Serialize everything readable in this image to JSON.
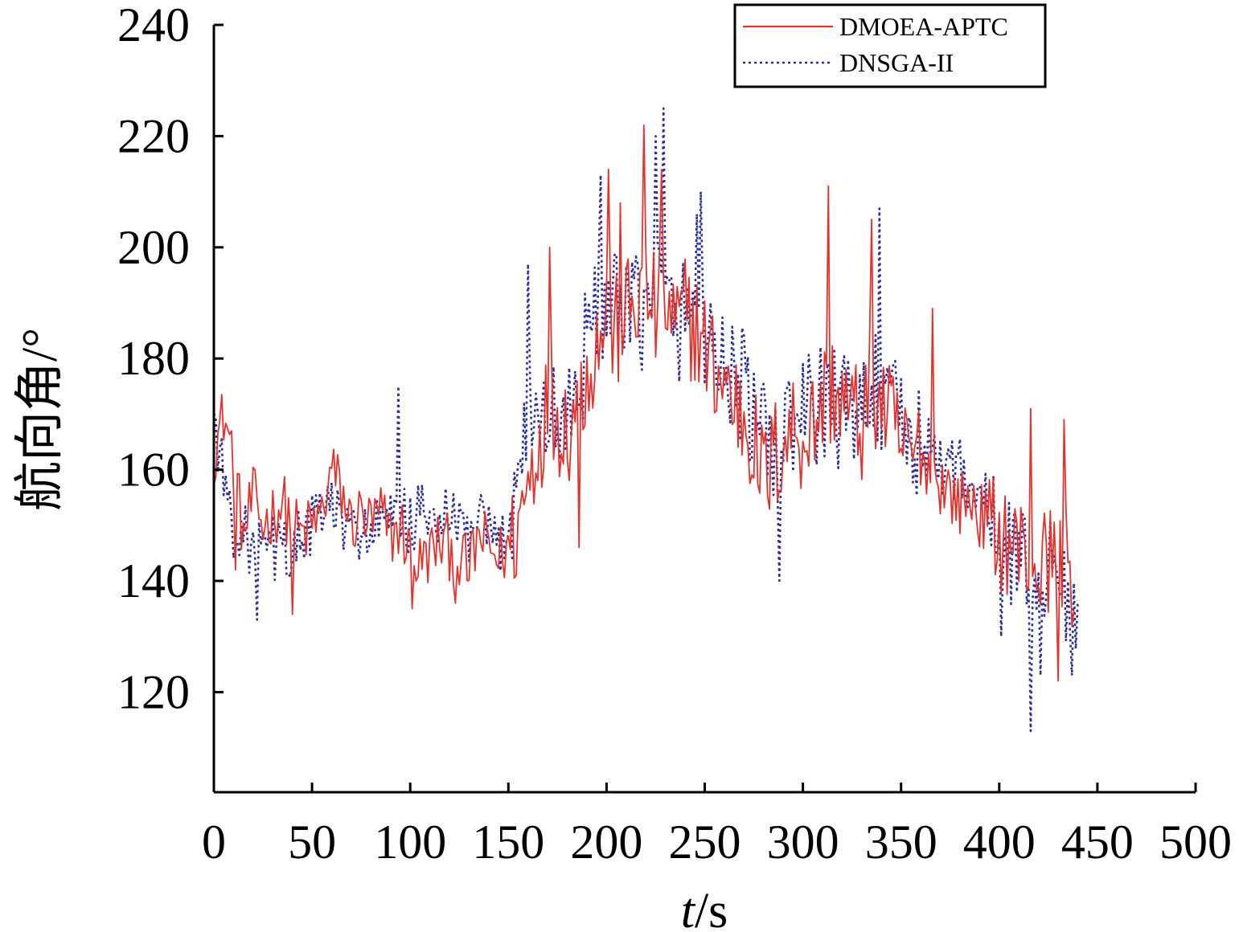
{
  "chart_data": {
    "type": "line",
    "title": "",
    "xlabel": "t/s",
    "xlabel_italic_part": "t",
    "xlabel_unit_part": "/s",
    "ylabel": "航向角/°",
    "xlim": [
      0,
      500
    ],
    "ylim": [
      102,
      240
    ],
    "xticks": [
      0,
      50,
      100,
      150,
      200,
      250,
      300,
      350,
      400,
      450,
      500
    ],
    "yticks": [
      120,
      140,
      160,
      180,
      200,
      220,
      240
    ],
    "grid": false,
    "legend_position": "top-right",
    "series": [
      {
        "name": "DMOEA-APTC",
        "color": "#e8312a",
        "style": "solid",
        "anchors": [
          [
            0,
            163
          ],
          [
            5,
            170
          ],
          [
            10,
            162
          ],
          [
            15,
            148
          ],
          [
            20,
            155
          ],
          [
            25,
            150
          ],
          [
            30,
            152
          ],
          [
            35,
            154
          ],
          [
            40,
            150
          ],
          [
            45,
            148
          ],
          [
            50,
            150
          ],
          [
            55,
            152
          ],
          [
            60,
            160
          ],
          [
            65,
            156
          ],
          [
            70,
            150
          ],
          [
            75,
            152
          ],
          [
            80,
            150
          ],
          [
            85,
            152
          ],
          [
            90,
            148
          ],
          [
            95,
            150
          ],
          [
            100,
            145
          ],
          [
            105,
            143
          ],
          [
            110,
            145
          ],
          [
            115,
            147
          ],
          [
            120,
            146
          ],
          [
            125,
            144
          ],
          [
            130,
            142
          ],
          [
            135,
            148
          ],
          [
            140,
            146
          ],
          [
            145,
            144
          ],
          [
            150,
            146
          ],
          [
            155,
            150
          ],
          [
            160,
            158
          ],
          [
            165,
            165
          ],
          [
            170,
            172
          ],
          [
            175,
            170
          ],
          [
            180,
            168
          ],
          [
            185,
            172
          ],
          [
            190,
            178
          ],
          [
            195,
            182
          ],
          [
            200,
            188
          ],
          [
            205,
            184
          ],
          [
            210,
            188
          ],
          [
            215,
            190
          ],
          [
            220,
            192
          ],
          [
            225,
            188
          ],
          [
            230,
            190
          ],
          [
            235,
            185
          ],
          [
            240,
            188
          ],
          [
            245,
            186
          ],
          [
            250,
            182
          ],
          [
            255,
            178
          ],
          [
            260,
            176
          ],
          [
            265,
            172
          ],
          [
            270,
            170
          ],
          [
            275,
            165
          ],
          [
            280,
            158
          ],
          [
            285,
            162
          ],
          [
            290,
            165
          ],
          [
            295,
            168
          ],
          [
            300,
            166
          ],
          [
            305,
            168
          ],
          [
            310,
            172
          ],
          [
            315,
            175
          ],
          [
            320,
            172
          ],
          [
            325,
            170
          ],
          [
            330,
            168
          ],
          [
            335,
            175
          ],
          [
            340,
            172
          ],
          [
            345,
            168
          ],
          [
            350,
            164
          ],
          [
            355,
            162
          ],
          [
            360,
            163
          ],
          [
            365,
            160
          ],
          [
            370,
            158
          ],
          [
            375,
            156
          ],
          [
            380,
            154
          ],
          [
            385,
            155
          ],
          [
            390,
            152
          ],
          [
            395,
            150
          ],
          [
            400,
            148
          ],
          [
            405,
            147
          ],
          [
            410,
            146
          ],
          [
            415,
            144
          ],
          [
            420,
            142
          ],
          [
            425,
            144
          ],
          [
            430,
            145
          ],
          [
            435,
            144
          ],
          [
            438,
            140
          ]
        ],
        "peaks": [
          [
            219,
            222
          ],
          [
            313,
            211
          ],
          [
            201,
            214
          ],
          [
            335,
            205
          ],
          [
            228,
            214
          ],
          [
            207,
            208
          ],
          [
            171,
            200
          ],
          [
            366,
            189
          ],
          [
            186,
            146
          ],
          [
            416,
            171
          ],
          [
            433,
            169
          ],
          [
            430,
            122
          ],
          [
            40,
            134
          ],
          [
            11,
            142
          ],
          [
            101,
            135
          ],
          [
            123,
            136
          ]
        ]
      },
      {
        "name": "DNSGA-II",
        "color": "#2a2f9c",
        "style": "dotted",
        "anchors": [
          [
            0,
            170
          ],
          [
            5,
            158
          ],
          [
            10,
            150
          ],
          [
            15,
            148
          ],
          [
            20,
            146
          ],
          [
            25,
            145
          ],
          [
            30,
            146
          ],
          [
            35,
            145
          ],
          [
            40,
            146
          ],
          [
            45,
            148
          ],
          [
            50,
            150
          ],
          [
            55,
            152
          ],
          [
            60,
            154
          ],
          [
            65,
            150
          ],
          [
            70,
            148
          ],
          [
            75,
            150
          ],
          [
            80,
            148
          ],
          [
            85,
            150
          ],
          [
            90,
            150
          ],
          [
            95,
            152
          ],
          [
            100,
            150
          ],
          [
            105,
            152
          ],
          [
            110,
            150
          ],
          [
            115,
            152
          ],
          [
            120,
            150
          ],
          [
            125,
            150
          ],
          [
            130,
            148
          ],
          [
            135,
            150
          ],
          [
            140,
            148
          ],
          [
            145,
            146
          ],
          [
            150,
            150
          ],
          [
            155,
            160
          ],
          [
            160,
            172
          ],
          [
            165,
            168
          ],
          [
            170,
            170
          ],
          [
            175,
            168
          ],
          [
            180,
            170
          ],
          [
            185,
            176
          ],
          [
            190,
            182
          ],
          [
            195,
            190
          ],
          [
            200,
            190
          ],
          [
            205,
            188
          ],
          [
            210,
            186
          ],
          [
            215,
            190
          ],
          [
            220,
            188
          ],
          [
            225,
            195
          ],
          [
            230,
            190
          ],
          [
            235,
            186
          ],
          [
            240,
            188
          ],
          [
            245,
            190
          ],
          [
            250,
            186
          ],
          [
            255,
            182
          ],
          [
            260,
            178
          ],
          [
            265,
            176
          ],
          [
            270,
            175
          ],
          [
            275,
            168
          ],
          [
            280,
            165
          ],
          [
            285,
            165
          ],
          [
            290,
            166
          ],
          [
            295,
            168
          ],
          [
            300,
            170
          ],
          [
            305,
            170
          ],
          [
            310,
            172
          ],
          [
            315,
            172
          ],
          [
            320,
            170
          ],
          [
            325,
            172
          ],
          [
            330,
            170
          ],
          [
            335,
            178
          ],
          [
            340,
            172
          ],
          [
            345,
            170
          ],
          [
            350,
            168
          ],
          [
            355,
            165
          ],
          [
            360,
            164
          ],
          [
            365,
            163
          ],
          [
            370,
            162
          ],
          [
            375,
            160
          ],
          [
            380,
            160
          ],
          [
            385,
            158
          ],
          [
            390,
            156
          ],
          [
            395,
            152
          ],
          [
            400,
            148
          ],
          [
            405,
            146
          ],
          [
            410,
            145
          ],
          [
            415,
            142
          ],
          [
            420,
            140
          ],
          [
            425,
            142
          ],
          [
            430,
            140
          ],
          [
            435,
            138
          ],
          [
            440,
            135
          ]
        ],
        "peaks": [
          [
            229,
            225
          ],
          [
            197,
            213
          ],
          [
            248,
            210
          ],
          [
            339,
            207
          ],
          [
            160,
            197
          ],
          [
            416,
            113
          ],
          [
            288,
            140
          ],
          [
            22,
            133
          ],
          [
            94,
            175
          ],
          [
            421,
            123
          ],
          [
            401,
            130
          ],
          [
            437,
            123
          ],
          [
            182,
            166
          ],
          [
            225,
            220
          ],
          [
            246,
            206
          ]
        ]
      }
    ]
  }
}
